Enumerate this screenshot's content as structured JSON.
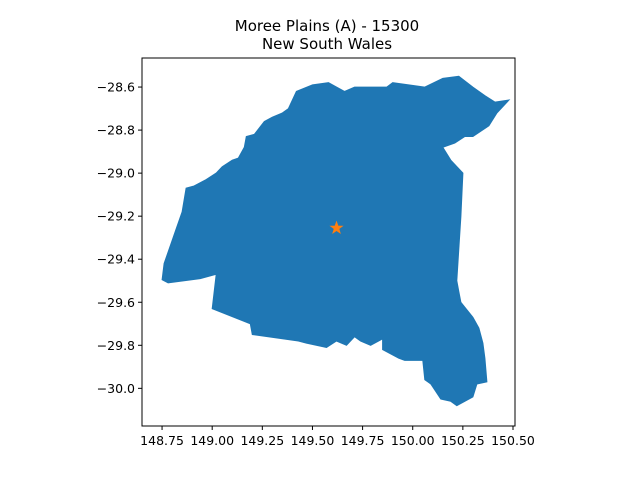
{
  "chart_data": {
    "type": "map",
    "title_lines": [
      "Moree Plains (A) - 15300",
      "New South Wales"
    ],
    "xlabel": "",
    "ylabel": "",
    "xlim": [
      148.65,
      150.51
    ],
    "ylim": [
      -30.175,
      -28.465
    ],
    "grid": false,
    "x_ticks": [
      148.75,
      149.0,
      149.25,
      149.5,
      149.75,
      150.0,
      150.25,
      150.5
    ],
    "x_tick_labels": [
      "148.75",
      "149.00",
      "149.25",
      "149.50",
      "149.75",
      "150.00",
      "150.25",
      "150.50"
    ],
    "y_ticks": [
      -28.6,
      -28.8,
      -29.0,
      -29.2,
      -29.4,
      -29.6,
      -29.8,
      -30.0
    ],
    "y_tick_labels": [
      "−28.6",
      "−28.8",
      "−29.0",
      "−29.2",
      "−29.4",
      "−29.6",
      "−29.8",
      "−30.0"
    ],
    "region_color": "#1f77b4",
    "marker_color": "#ff7f0e",
    "marker": {
      "symbol": "star",
      "x": 149.62,
      "y": -29.255
    },
    "region_outline": [
      [
        148.75,
        -29.495
      ],
      [
        148.76,
        -29.42
      ],
      [
        148.79,
        -29.34
      ],
      [
        148.82,
        -29.26
      ],
      [
        148.85,
        -29.18
      ],
      [
        148.87,
        -29.07
      ],
      [
        148.91,
        -29.06
      ],
      [
        148.97,
        -29.03
      ],
      [
        149.02,
        -29.0
      ],
      [
        149.05,
        -28.97
      ],
      [
        149.1,
        -28.94
      ],
      [
        149.13,
        -28.93
      ],
      [
        149.16,
        -28.88
      ],
      [
        149.17,
        -28.83
      ],
      [
        149.21,
        -28.82
      ],
      [
        149.26,
        -28.76
      ],
      [
        149.3,
        -28.74
      ],
      [
        149.35,
        -28.72
      ],
      [
        149.38,
        -28.7
      ],
      [
        149.42,
        -28.62
      ],
      [
        149.5,
        -28.59
      ],
      [
        149.58,
        -28.58
      ],
      [
        149.62,
        -28.6
      ],
      [
        149.66,
        -28.62
      ],
      [
        149.71,
        -28.6
      ],
      [
        149.8,
        -28.6
      ],
      [
        149.87,
        -28.6
      ],
      [
        149.9,
        -28.58
      ],
      [
        149.98,
        -28.59
      ],
      [
        150.06,
        -28.6
      ],
      [
        150.15,
        -28.56
      ],
      [
        150.23,
        -28.55
      ],
      [
        150.3,
        -28.6
      ],
      [
        150.36,
        -28.64
      ],
      [
        150.41,
        -28.67
      ],
      [
        150.48,
        -28.66
      ],
      [
        150.42,
        -28.72
      ],
      [
        150.38,
        -28.78
      ],
      [
        150.3,
        -28.83
      ],
      [
        150.26,
        -28.83
      ],
      [
        150.21,
        -28.86
      ],
      [
        150.15,
        -28.88
      ],
      [
        150.19,
        -28.94
      ],
      [
        150.25,
        -29.0
      ],
      [
        150.24,
        -29.2
      ],
      [
        150.22,
        -29.5
      ],
      [
        150.23,
        -29.55
      ],
      [
        150.24,
        -29.6
      ],
      [
        150.3,
        -29.67
      ],
      [
        150.33,
        -29.72
      ],
      [
        150.35,
        -29.79
      ],
      [
        150.36,
        -29.86
      ],
      [
        150.37,
        -29.97
      ],
      [
        150.32,
        -29.98
      ],
      [
        150.3,
        -30.04
      ],
      [
        150.22,
        -30.08
      ],
      [
        150.19,
        -30.06
      ],
      [
        150.14,
        -30.05
      ],
      [
        150.09,
        -29.98
      ],
      [
        150.06,
        -29.96
      ],
      [
        150.05,
        -29.87
      ],
      [
        149.96,
        -29.87
      ],
      [
        149.93,
        -29.86
      ],
      [
        149.85,
        -29.82
      ],
      [
        149.85,
        -29.77
      ],
      [
        149.79,
        -29.8
      ],
      [
        149.74,
        -29.78
      ],
      [
        149.71,
        -29.76
      ],
      [
        149.67,
        -29.8
      ],
      [
        149.62,
        -29.78
      ],
      [
        149.57,
        -29.81
      ],
      [
        149.47,
        -29.79
      ],
      [
        149.43,
        -29.78
      ],
      [
        149.2,
        -29.75
      ],
      [
        149.19,
        -29.7
      ],
      [
        149.0,
        -29.63
      ],
      [
        149.02,
        -29.47
      ],
      [
        148.94,
        -29.49
      ],
      [
        148.86,
        -29.5
      ],
      [
        148.78,
        -29.51
      ]
    ]
  }
}
